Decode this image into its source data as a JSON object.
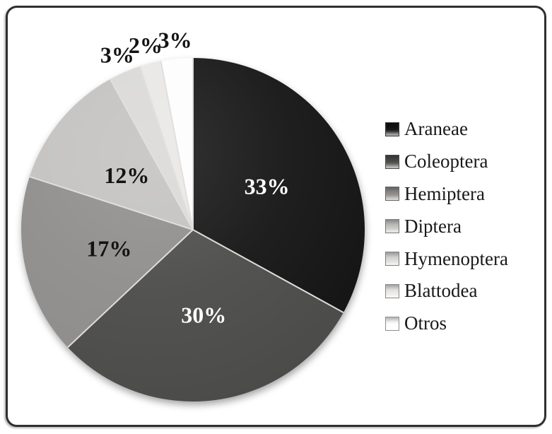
{
  "window": {
    "background": "#ffffff",
    "border_color": "#2f2f2f"
  },
  "chart_data": {
    "type": "pie",
    "title": "",
    "legend_position": "right",
    "start_angle_deg": 0,
    "direction": "clockwise",
    "total": 100,
    "series": [
      {
        "label": "Araneae",
        "value": 33,
        "display": "33%",
        "color": "#131313",
        "label_color": "#ffffff",
        "label_placement": "inside"
      },
      {
        "label": "Coleoptera",
        "value": 30,
        "display": "30%",
        "color": "#4a4a48",
        "label_color": "#ffffff",
        "label_placement": "inside"
      },
      {
        "label": "Hemiptera",
        "value": 17,
        "display": "17%",
        "color": "#8e8c8a",
        "label_color": "#131313",
        "label_placement": "inside"
      },
      {
        "label": "Diptera",
        "value": 12,
        "display": "12%",
        "color": "#c2c1bf",
        "label_color": "#131313",
        "label_placement": "inside"
      },
      {
        "label": "Hymenoptera",
        "value": 3,
        "display": "3%",
        "color": "#d9d8d6",
        "label_color": "#131313",
        "label_placement": "outside"
      },
      {
        "label": "Blattodea",
        "value": 2,
        "display": "2%",
        "color": "#e8e7e5",
        "label_color": "#131313",
        "label_placement": "outside"
      },
      {
        "label": "Otros",
        "value": 3,
        "display": "3%",
        "color": "#fdfdfd",
        "label_color": "#131313",
        "label_placement": "outside"
      }
    ]
  }
}
